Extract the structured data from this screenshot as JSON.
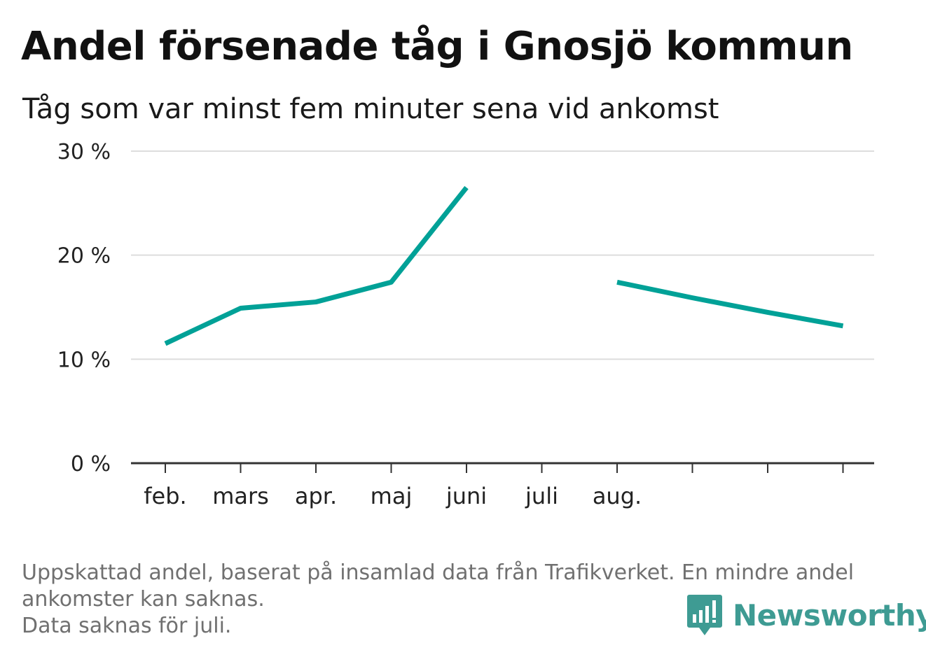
{
  "title": "Andel försenade tåg i Gnosjö kommun",
  "subtitle": "Tåg som var minst fem minuter sena vid ankomst",
  "footnote": {
    "line1": "Uppskattad andel, baserat på insamlad data från Trafikverket. En mindre andel",
    "line2": "ankomster kan saknas.",
    "line3": "Data saknas för juli."
  },
  "brand": {
    "name": "Newsworthy",
    "icon": "bar-chart-speech-bubble-icon",
    "color": "#3e9b93"
  },
  "colors": {
    "line": "#00a197",
    "grid": "#dddddd",
    "axis": "#333333"
  },
  "chart_data": {
    "type": "line",
    "title": "Andel försenade tåg i Gnosjö kommun",
    "subtitle": "Tåg som var minst fem minuter sena vid ankomst",
    "categories": [
      "feb.",
      "mars",
      "apr.",
      "maj",
      "juni",
      "juli",
      "aug.",
      "",
      "",
      ""
    ],
    "series": [
      {
        "values": [
          11.5,
          14.9,
          15.5,
          17.4,
          26.5,
          null,
          17.4,
          15.9,
          14.5,
          13.2
        ]
      }
    ],
    "ylim": [
      0,
      30
    ],
    "yticks": [
      0,
      10,
      20,
      30
    ],
    "ytick_labels": [
      "0 %",
      "10 %",
      "20 %",
      "30 %"
    ],
    "grid": true,
    "legend": "none"
  }
}
